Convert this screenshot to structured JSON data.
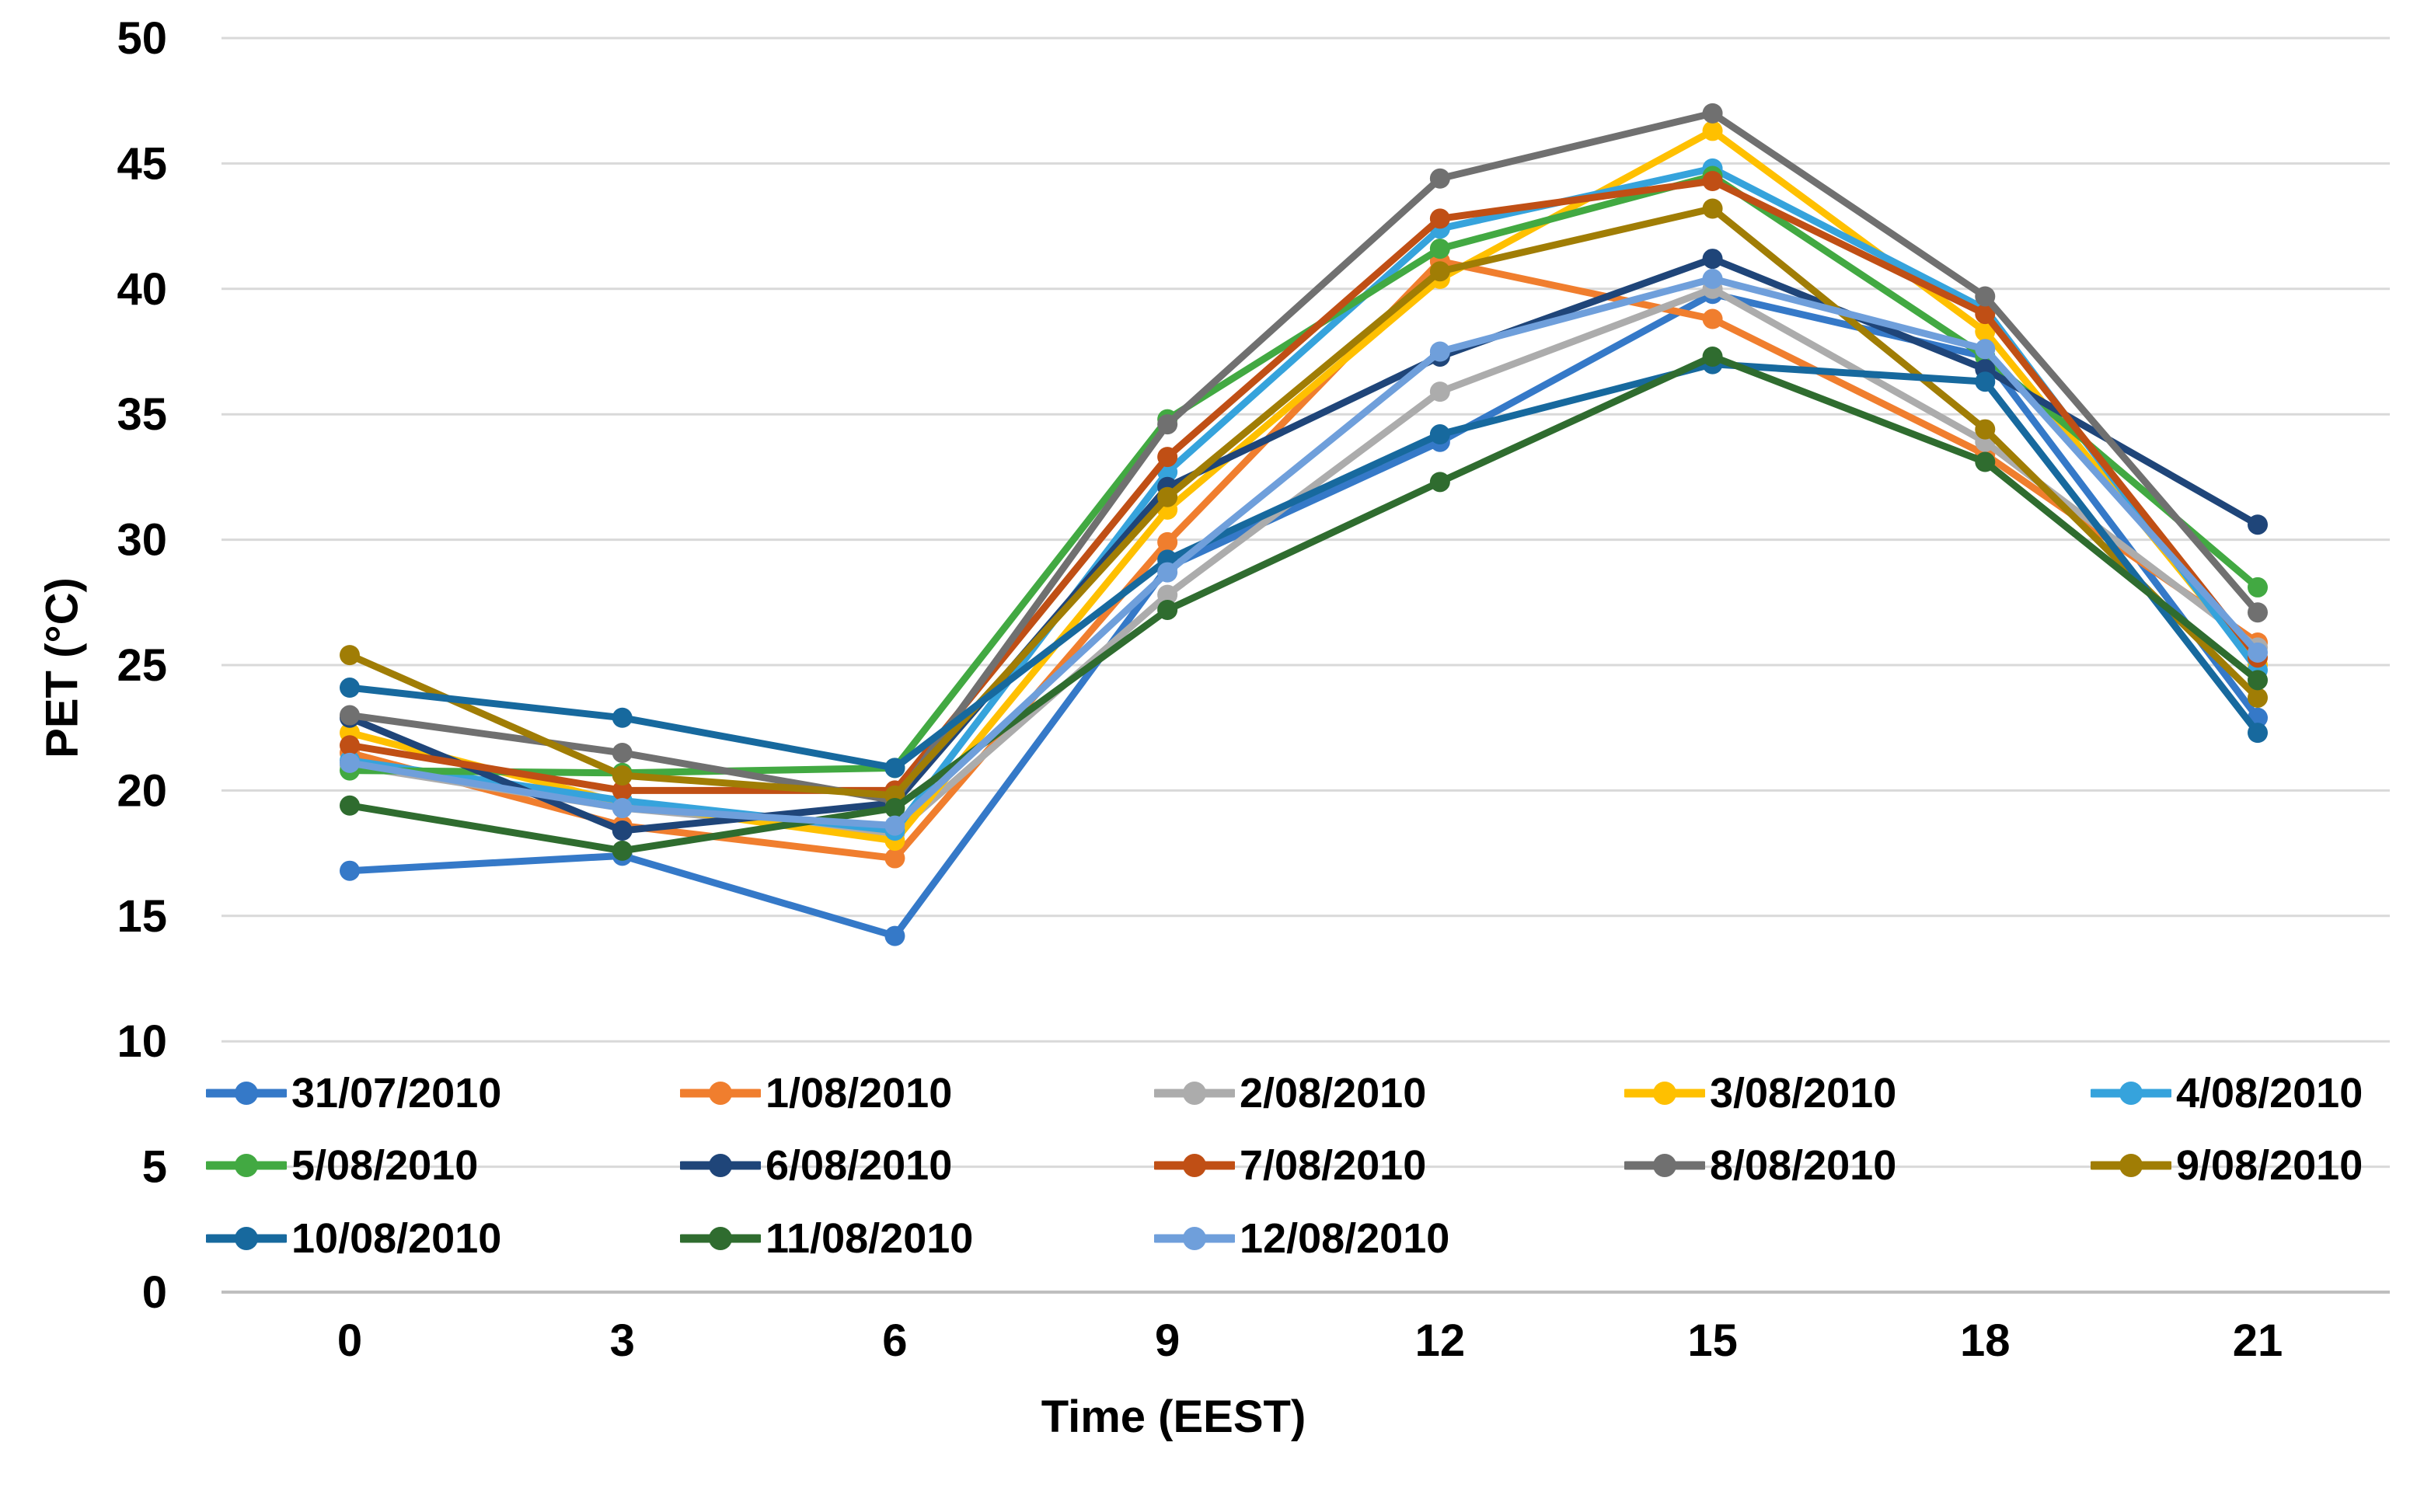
{
  "figure": {
    "background": "#FFFFFF",
    "text_color": "#000000"
  },
  "chart_data": {
    "type": "line",
    "title": "",
    "xlabel": "Time (EEST)",
    "ylabel": "PET (°C)",
    "x": [
      0,
      3,
      6,
      9,
      12,
      15,
      18,
      21
    ],
    "x_tick_labels": [
      "0",
      "3",
      "6",
      "9",
      "12",
      "15",
      "18",
      "21"
    ],
    "ylim": [
      0,
      50
    ],
    "y_tick_step": 5,
    "y_tick_labels": [
      "0",
      "5",
      "10",
      "15",
      "20",
      "25",
      "30",
      "35",
      "40",
      "45",
      "50"
    ],
    "grid": "horizontal-only",
    "gridline_color": "#D9D9D9",
    "axis_line_color": "#BFBFBF",
    "legend_position": "inside-bottom-left",
    "legend_rows": 3,
    "legend_columns": 5,
    "series": [
      {
        "name": "31/07/2010",
        "color": "#3579C8",
        "values": [
          16.8,
          17.4,
          14.2,
          28.9,
          33.9,
          39.8,
          37.3,
          22.9
        ]
      },
      {
        "name": "1/08/2010",
        "color": "#F07E2E",
        "values": [
          21.5,
          18.6,
          17.3,
          29.9,
          41.1,
          38.8,
          33.4,
          25.9
        ]
      },
      {
        "name": "2/08/2010",
        "color": "#ACACAC",
        "values": [
          21.0,
          19.3,
          18.3,
          27.8,
          35.9,
          40.0,
          33.9,
          25.7
        ]
      },
      {
        "name": "3/08/2010",
        "color": "#FFC000",
        "values": [
          22.3,
          19.5,
          18.0,
          31.2,
          40.4,
          46.3,
          38.3,
          25.0
        ]
      },
      {
        "name": "4/08/2010",
        "color": "#36A3DC",
        "values": [
          21.2,
          19.6,
          18.4,
          32.7,
          42.4,
          44.8,
          39.2,
          24.8
        ]
      },
      {
        "name": "5/08/2010",
        "color": "#42A942",
        "values": [
          20.8,
          20.7,
          20.9,
          34.8,
          41.6,
          44.5,
          37.3,
          28.1
        ]
      },
      {
        "name": "6/08/2010",
        "color": "#1F4579",
        "values": [
          22.9,
          18.4,
          19.5,
          32.1,
          37.3,
          41.2,
          36.8,
          30.6
        ]
      },
      {
        "name": "7/08/2010",
        "color": "#C04F15",
        "values": [
          21.8,
          20.0,
          20.0,
          33.3,
          42.8,
          44.3,
          39.0,
          25.3
        ]
      },
      {
        "name": "8/08/2010",
        "color": "#707070",
        "values": [
          23.0,
          21.5,
          19.6,
          34.6,
          44.4,
          47.0,
          39.7,
          27.1
        ]
      },
      {
        "name": "9/08/2010",
        "color": "#A07D05",
        "values": [
          25.4,
          20.6,
          19.8,
          31.7,
          40.7,
          43.2,
          34.4,
          23.7
        ]
      },
      {
        "name": "10/08/2010",
        "color": "#17699E",
        "values": [
          24.1,
          22.9,
          20.9,
          29.2,
          34.2,
          37.0,
          36.3,
          22.3
        ]
      },
      {
        "name": "11/08/2010",
        "color": "#2F6C2F",
        "values": [
          19.4,
          17.6,
          19.3,
          27.2,
          32.3,
          37.3,
          33.1,
          24.4
        ]
      },
      {
        "name": "12/08/2010",
        "color": "#6F9FDB",
        "values": [
          21.1,
          19.3,
          18.6,
          28.7,
          37.5,
          40.4,
          37.6,
          25.5
        ]
      }
    ]
  }
}
